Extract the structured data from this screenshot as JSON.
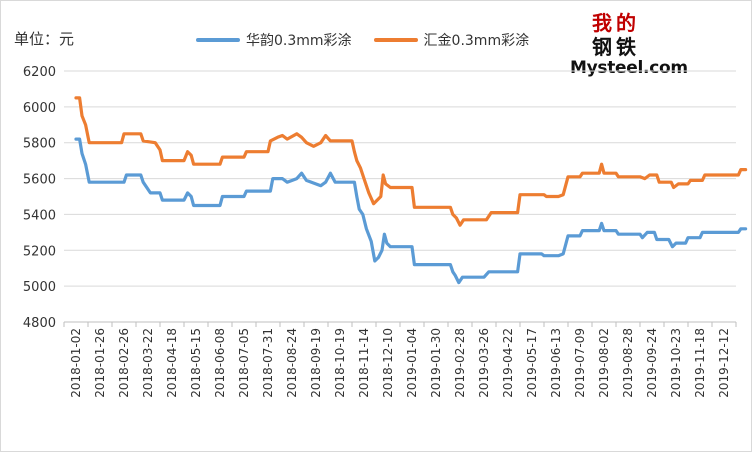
{
  "unit_label": "单位：元",
  "logo": {
    "chinese_chars": [
      "我",
      "的",
      "钢",
      "铁"
    ],
    "english": "Mysteel.com"
  },
  "colors": {
    "series1": "#5b9bd5",
    "series2": "#ed7d31",
    "grid": "#d9d9d9",
    "axis": "#bfbfbf",
    "logo_red": "#c00000"
  },
  "chart_data": {
    "type": "line",
    "ylim": [
      4800,
      6200
    ],
    "yticks": [
      4800,
      5000,
      5200,
      5400,
      5600,
      5800,
      6000,
      6200
    ],
    "grid": true,
    "legend_position": "top",
    "xlabels": [
      "2018-01-02",
      "2018-01-26",
      "2018-02-26",
      "2018-03-22",
      "2018-04-18",
      "2018-05-15",
      "2018-06-08",
      "2018-07-05",
      "2018-07-31",
      "2018-08-24",
      "2018-09-19",
      "2018-10-19",
      "2018-11-14",
      "2018-12-10",
      "2019-01-04",
      "2019-01-30",
      "2019-02-28",
      "2019-03-26",
      "2019-04-22",
      "2019-05-17",
      "2019-06-13",
      "2019-07-09",
      "2019-08-02",
      "2019-08-28",
      "2019-09-24",
      "2019-10-23",
      "2019-11-18",
      "2019-12-12"
    ],
    "series": [
      {
        "name": "华韵0.3mm彩涂",
        "points": [
          [
            0,
            5820
          ],
          [
            0.15,
            5820
          ],
          [
            0.25,
            5740
          ],
          [
            0.4,
            5680
          ],
          [
            0.55,
            5580
          ],
          [
            1.0,
            5580
          ],
          [
            2.0,
            5580
          ],
          [
            2.1,
            5620
          ],
          [
            2.7,
            5620
          ],
          [
            2.8,
            5580
          ],
          [
            3.1,
            5520
          ],
          [
            3.5,
            5520
          ],
          [
            3.6,
            5480
          ],
          [
            4.5,
            5480
          ],
          [
            4.65,
            5520
          ],
          [
            4.8,
            5500
          ],
          [
            4.9,
            5450
          ],
          [
            6.0,
            5450
          ],
          [
            6.1,
            5500
          ],
          [
            7.0,
            5500
          ],
          [
            7.1,
            5530
          ],
          [
            8.1,
            5530
          ],
          [
            8.2,
            5600
          ],
          [
            8.6,
            5600
          ],
          [
            8.8,
            5580
          ],
          [
            9.2,
            5600
          ],
          [
            9.4,
            5630
          ],
          [
            9.6,
            5590
          ],
          [
            10.2,
            5560
          ],
          [
            10.4,
            5580
          ],
          [
            10.6,
            5630
          ],
          [
            10.8,
            5580
          ],
          [
            11.6,
            5580
          ],
          [
            11.7,
            5500
          ],
          [
            11.8,
            5430
          ],
          [
            11.95,
            5400
          ],
          [
            12.1,
            5320
          ],
          [
            12.3,
            5250
          ],
          [
            12.45,
            5140
          ],
          [
            12.6,
            5160
          ],
          [
            12.75,
            5200
          ],
          [
            12.85,
            5290
          ],
          [
            12.95,
            5240
          ],
          [
            13.1,
            5220
          ],
          [
            14.0,
            5220
          ],
          [
            14.1,
            5120
          ],
          [
            15.6,
            5120
          ],
          [
            15.7,
            5080
          ],
          [
            15.8,
            5060
          ],
          [
            15.95,
            5020
          ],
          [
            16.1,
            5050
          ],
          [
            17.0,
            5050
          ],
          [
            17.2,
            5080
          ],
          [
            18.4,
            5080
          ],
          [
            18.5,
            5180
          ],
          [
            19.4,
            5180
          ],
          [
            19.5,
            5170
          ],
          [
            20.1,
            5170
          ],
          [
            20.3,
            5180
          ],
          [
            20.5,
            5280
          ],
          [
            21.0,
            5280
          ],
          [
            21.1,
            5310
          ],
          [
            21.8,
            5310
          ],
          [
            21.9,
            5350
          ],
          [
            22.0,
            5310
          ],
          [
            22.5,
            5310
          ],
          [
            22.6,
            5290
          ],
          [
            23.5,
            5290
          ],
          [
            23.6,
            5270
          ],
          [
            23.8,
            5300
          ],
          [
            24.1,
            5300
          ],
          [
            24.2,
            5260
          ],
          [
            24.7,
            5260
          ],
          [
            24.85,
            5220
          ],
          [
            25.0,
            5240
          ],
          [
            25.4,
            5240
          ],
          [
            25.5,
            5270
          ],
          [
            26.0,
            5270
          ],
          [
            26.1,
            5300
          ],
          [
            27.6,
            5300
          ],
          [
            27.7,
            5320
          ],
          [
            27.9,
            5320
          ]
        ]
      },
      {
        "name": "汇金0.3mm彩涂",
        "points": [
          [
            0,
            6050
          ],
          [
            0.15,
            6050
          ],
          [
            0.25,
            5950
          ],
          [
            0.4,
            5900
          ],
          [
            0.55,
            5800
          ],
          [
            1.0,
            5800
          ],
          [
            1.9,
            5800
          ],
          [
            2.0,
            5850
          ],
          [
            2.7,
            5850
          ],
          [
            2.8,
            5810
          ],
          [
            3.3,
            5800
          ],
          [
            3.5,
            5760
          ],
          [
            3.6,
            5700
          ],
          [
            4.5,
            5700
          ],
          [
            4.65,
            5750
          ],
          [
            4.8,
            5730
          ],
          [
            4.9,
            5680
          ],
          [
            6.0,
            5680
          ],
          [
            6.1,
            5720
          ],
          [
            7.0,
            5720
          ],
          [
            7.1,
            5750
          ],
          [
            8.0,
            5750
          ],
          [
            8.1,
            5810
          ],
          [
            8.4,
            5830
          ],
          [
            8.6,
            5840
          ],
          [
            8.8,
            5820
          ],
          [
            9.2,
            5850
          ],
          [
            9.4,
            5830
          ],
          [
            9.6,
            5800
          ],
          [
            9.9,
            5780
          ],
          [
            10.2,
            5800
          ],
          [
            10.4,
            5840
          ],
          [
            10.6,
            5810
          ],
          [
            11.5,
            5810
          ],
          [
            11.6,
            5750
          ],
          [
            11.7,
            5700
          ],
          [
            11.85,
            5660
          ],
          [
            12.0,
            5600
          ],
          [
            12.2,
            5520
          ],
          [
            12.4,
            5460
          ],
          [
            12.55,
            5480
          ],
          [
            12.7,
            5500
          ],
          [
            12.8,
            5620
          ],
          [
            12.9,
            5570
          ],
          [
            13.1,
            5550
          ],
          [
            14.0,
            5550
          ],
          [
            14.1,
            5440
          ],
          [
            15.6,
            5440
          ],
          [
            15.7,
            5400
          ],
          [
            15.85,
            5380
          ],
          [
            16.0,
            5340
          ],
          [
            16.15,
            5370
          ],
          [
            17.1,
            5370
          ],
          [
            17.3,
            5410
          ],
          [
            18.4,
            5410
          ],
          [
            18.5,
            5510
          ],
          [
            19.5,
            5510
          ],
          [
            19.6,
            5500
          ],
          [
            20.1,
            5500
          ],
          [
            20.3,
            5510
          ],
          [
            20.5,
            5610
          ],
          [
            21.0,
            5610
          ],
          [
            21.1,
            5630
          ],
          [
            21.8,
            5630
          ],
          [
            21.9,
            5680
          ],
          [
            22.0,
            5630
          ],
          [
            22.5,
            5630
          ],
          [
            22.6,
            5610
          ],
          [
            23.5,
            5610
          ],
          [
            23.7,
            5600
          ],
          [
            23.9,
            5620
          ],
          [
            24.2,
            5620
          ],
          [
            24.3,
            5580
          ],
          [
            24.8,
            5580
          ],
          [
            24.9,
            5550
          ],
          [
            25.1,
            5570
          ],
          [
            25.5,
            5570
          ],
          [
            25.6,
            5590
          ],
          [
            26.1,
            5590
          ],
          [
            26.2,
            5620
          ],
          [
            27.6,
            5620
          ],
          [
            27.7,
            5650
          ],
          [
            27.9,
            5650
          ]
        ]
      }
    ]
  }
}
